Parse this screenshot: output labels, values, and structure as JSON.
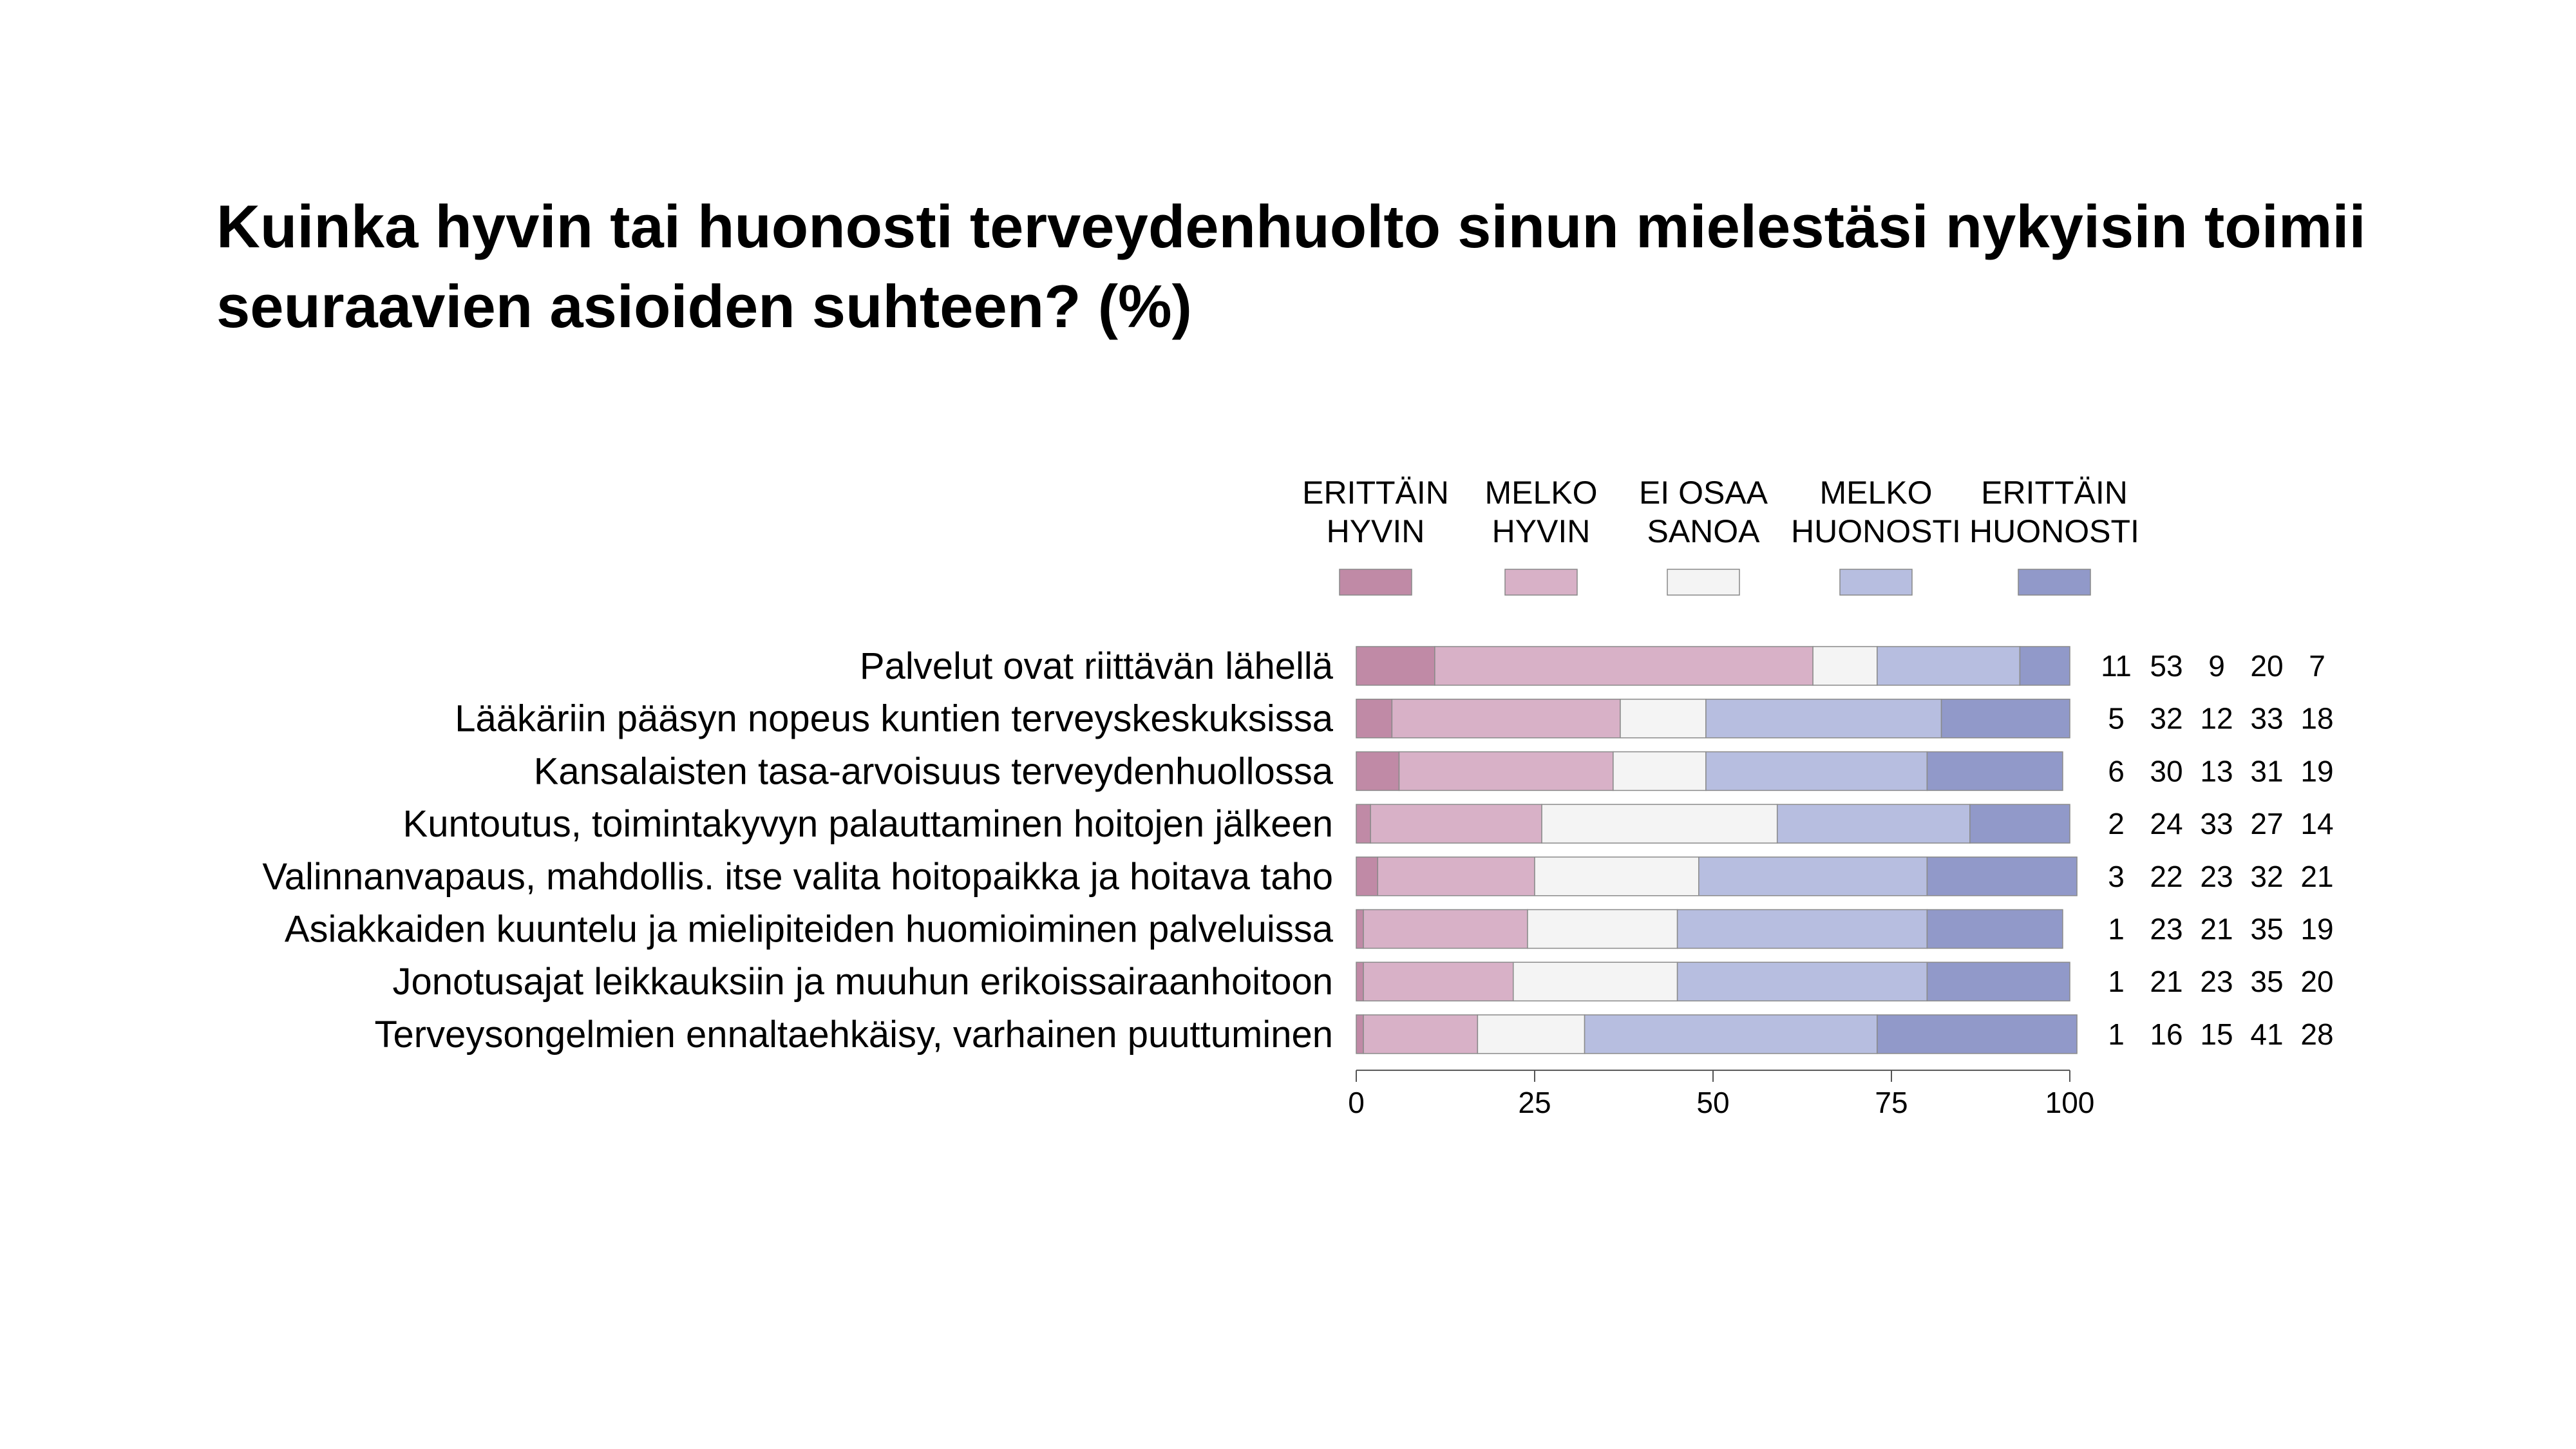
{
  "title": {
    "line1": "Kuinka hyvin tai huonosti terveydenhuolto sinun mielestäsi nykyisin toimii",
    "line2": "seuraavien asioiden suhteen? (%)"
  },
  "chart_data": {
    "type": "bar",
    "orientation": "horizontal",
    "stacked": true,
    "categories": [
      "Palvelut ovat riittävän lähellä",
      "Lääkäriin pääsyn nopeus kuntien terveyskeskuksissa",
      "Kansalaisten tasa-arvoisuus terveydenhuollossa",
      "Kuntoutus, toimintakyvyn palauttaminen hoitojen jälkeen",
      "Valinnanvapaus, mahdollis. itse valita hoitopaikka ja hoitava taho",
      "Asiakkaiden kuuntelu ja mielipiteiden huomioiminen palveluissa",
      "Jonotusajat leikkauksiin ja muuhun erikoissairaanhoitoon",
      "Terveysongelmien ennaltaehkäisy, varhainen puuttuminen"
    ],
    "series": [
      {
        "name": [
          "ERITTÄIN",
          "HYVIN"
        ],
        "color": "#c08aa6",
        "values": [
          11,
          5,
          6,
          2,
          3,
          1,
          1,
          1
        ]
      },
      {
        "name": [
          "MELKO",
          "HYVIN"
        ],
        "color": "#d8b1c7",
        "values": [
          53,
          32,
          30,
          24,
          22,
          23,
          21,
          16
        ]
      },
      {
        "name": [
          "EI OSAA",
          "SANOA"
        ],
        "color": "#f4f4f4",
        "values": [
          9,
          12,
          13,
          33,
          23,
          21,
          23,
          15
        ]
      },
      {
        "name": [
          "MELKO",
          "HUONOSTI"
        ],
        "color": "#b7bee0",
        "values": [
          20,
          33,
          31,
          27,
          32,
          35,
          35,
          41
        ]
      },
      {
        "name": [
          "ERITTÄIN",
          "HUONOSTI"
        ],
        "color": "#9199c9",
        "values": [
          7,
          18,
          19,
          14,
          21,
          19,
          20,
          28
        ]
      }
    ],
    "xlim": [
      0,
      100
    ],
    "xticks": [
      "0",
      "25",
      "50",
      "75",
      "100"
    ],
    "legend_position": "top",
    "value_table_position": "right"
  }
}
